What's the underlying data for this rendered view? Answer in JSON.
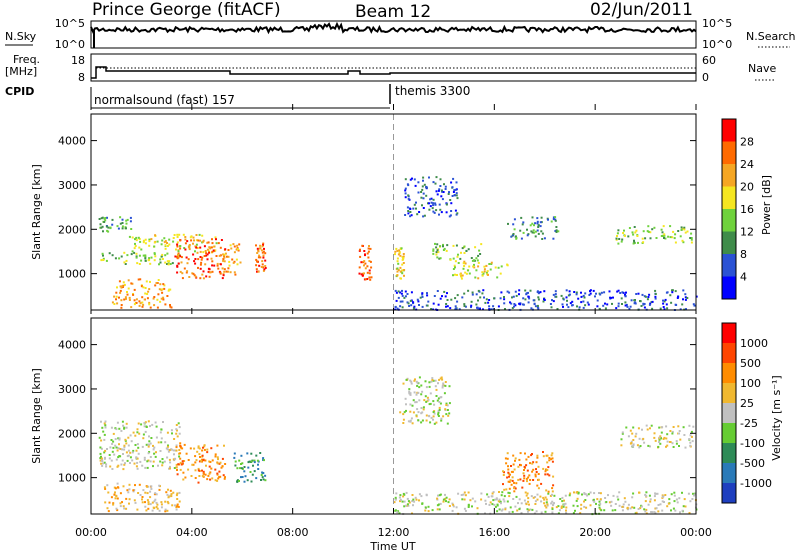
{
  "header": {
    "station": "Prince George (fitACF)",
    "beam": "Beam 12",
    "date": "02/Jun/2011"
  },
  "strip_panels": {
    "nsky": {
      "left_label": "N.Sky",
      "right_label": "N.Search",
      "left_ticks": [
        "10^5",
        "10^0"
      ],
      "right_ticks": [
        "10^5",
        "10^0"
      ]
    },
    "freq": {
      "left_label_line1": "Freq.",
      "left_label_line2": "[MHz]",
      "left_ticks": [
        "18",
        "8"
      ],
      "right_ticks": [
        "60",
        "0"
      ],
      "right_label": "Nave"
    },
    "cpid": {
      "label": "CPID",
      "segments": [
        {
          "name": "normalsound (fast) 157",
          "start_hour": 0,
          "end_hour": 12
        },
        {
          "name": "themis 3300",
          "start_hour": 12,
          "end_hour": 24
        }
      ]
    }
  },
  "chart_data": [
    {
      "type": "heatmap",
      "quantity": "Power",
      "xlabel": "Time UT",
      "ylabel": "Slant Range [km]",
      "xlim_hours": [
        0,
        24
      ],
      "x_ticks": [
        "00:00",
        "04:00",
        "08:00",
        "12:00",
        "16:00",
        "20:00",
        "00:00"
      ],
      "ylim": [
        180,
        4600
      ],
      "y_ticks": [
        1000,
        2000,
        3000,
        4000
      ],
      "colorbar": {
        "label": "Power [dB]",
        "ticks": [
          "4",
          "8",
          "12",
          "16",
          "20",
          "24",
          "28"
        ],
        "colors": [
          "#0000ff",
          "#2b52d4",
          "#3f8c4a",
          "#6fd23c",
          "#f5e620",
          "#f5a623",
          "#ff6a00",
          "#ff0000"
        ]
      },
      "echo_regions": [
        {
          "t0": 0.3,
          "t1": 1.6,
          "r0": 1950,
          "r1": 2300,
          "level": 2
        },
        {
          "t0": 0.3,
          "t1": 3.5,
          "r0": 1200,
          "r1": 1500,
          "level": 3
        },
        {
          "t0": 1.5,
          "t1": 5.0,
          "r0": 1500,
          "r1": 1900,
          "level": 4
        },
        {
          "t0": 3.3,
          "t1": 5.3,
          "r0": 900,
          "r1": 1800,
          "level": 6
        },
        {
          "t0": 5.1,
          "t1": 5.9,
          "r0": 1000,
          "r1": 1700,
          "level": 5
        },
        {
          "t0": 6.5,
          "t1": 6.9,
          "r0": 1050,
          "r1": 1700,
          "level": 6
        },
        {
          "t0": 0.8,
          "t1": 3.2,
          "r0": 250,
          "r1": 900,
          "level": 5
        },
        {
          "t0": 10.6,
          "t1": 11.1,
          "r0": 850,
          "r1": 1650,
          "level": 6
        },
        {
          "t0": 12.0,
          "t1": 12.4,
          "r0": 900,
          "r1": 1600,
          "level": 4
        },
        {
          "t0": 13.5,
          "t1": 15.5,
          "r0": 1300,
          "r1": 1700,
          "level": 3
        },
        {
          "t0": 14.3,
          "t1": 16.5,
          "r0": 900,
          "r1": 1300,
          "level": 4
        },
        {
          "t0": 12.0,
          "t1": 24.0,
          "r0": 200,
          "r1": 650,
          "level": 1
        },
        {
          "t0": 12.4,
          "t1": 14.5,
          "r0": 2300,
          "r1": 3200,
          "level": 1
        },
        {
          "t0": 16.5,
          "t1": 18.5,
          "r0": 1800,
          "r1": 2300,
          "level": 2
        },
        {
          "t0": 20.8,
          "t1": 23.8,
          "r0": 1700,
          "r1": 2100,
          "level": 3
        }
      ]
    },
    {
      "type": "heatmap",
      "quantity": "Velocity",
      "xlabel": "Time UT",
      "ylabel": "Slant Range [km]",
      "xlim_hours": [
        0,
        24
      ],
      "x_ticks": [
        "00:00",
        "04:00",
        "08:00",
        "12:00",
        "16:00",
        "20:00",
        "00:00"
      ],
      "ylim": [
        180,
        4600
      ],
      "y_ticks": [
        1000,
        2000,
        3000,
        4000
      ],
      "colorbar": {
        "label": "Velocity [m s⁻¹]",
        "ticks": [
          "1000",
          "500",
          "100",
          "25",
          "-25",
          "-100",
          "-500",
          "-1000"
        ],
        "colors": [
          "#1e3fbf",
          "#2a7ab8",
          "#2e8b57",
          "#66cc33",
          "#c0c0c0",
          "#f0b830",
          "#ff8c00",
          "#ff4500",
          "#ff0000"
        ]
      },
      "echo_regions": [
        {
          "t0": 0.3,
          "t1": 3.5,
          "r0": 1200,
          "r1": 2300,
          "level": 4
        },
        {
          "t0": 3.3,
          "t1": 5.3,
          "r0": 900,
          "r1": 1800,
          "level": 6
        },
        {
          "t0": 5.6,
          "t1": 6.9,
          "r0": 900,
          "r1": 1600,
          "level": 2
        },
        {
          "t0": 0.5,
          "t1": 3.5,
          "r0": 250,
          "r1": 900,
          "level": 5
        },
        {
          "t0": 12.2,
          "t1": 14.2,
          "r0": 2200,
          "r1": 3300,
          "level": 4
        },
        {
          "t0": 12.0,
          "t1": 24.0,
          "r0": 200,
          "r1": 700,
          "level": 4
        },
        {
          "t0": 16.3,
          "t1": 18.3,
          "r0": 700,
          "r1": 1600,
          "level": 6
        },
        {
          "t0": 21.0,
          "t1": 23.9,
          "r0": 1700,
          "r1": 2200,
          "level": 4
        }
      ]
    }
  ]
}
